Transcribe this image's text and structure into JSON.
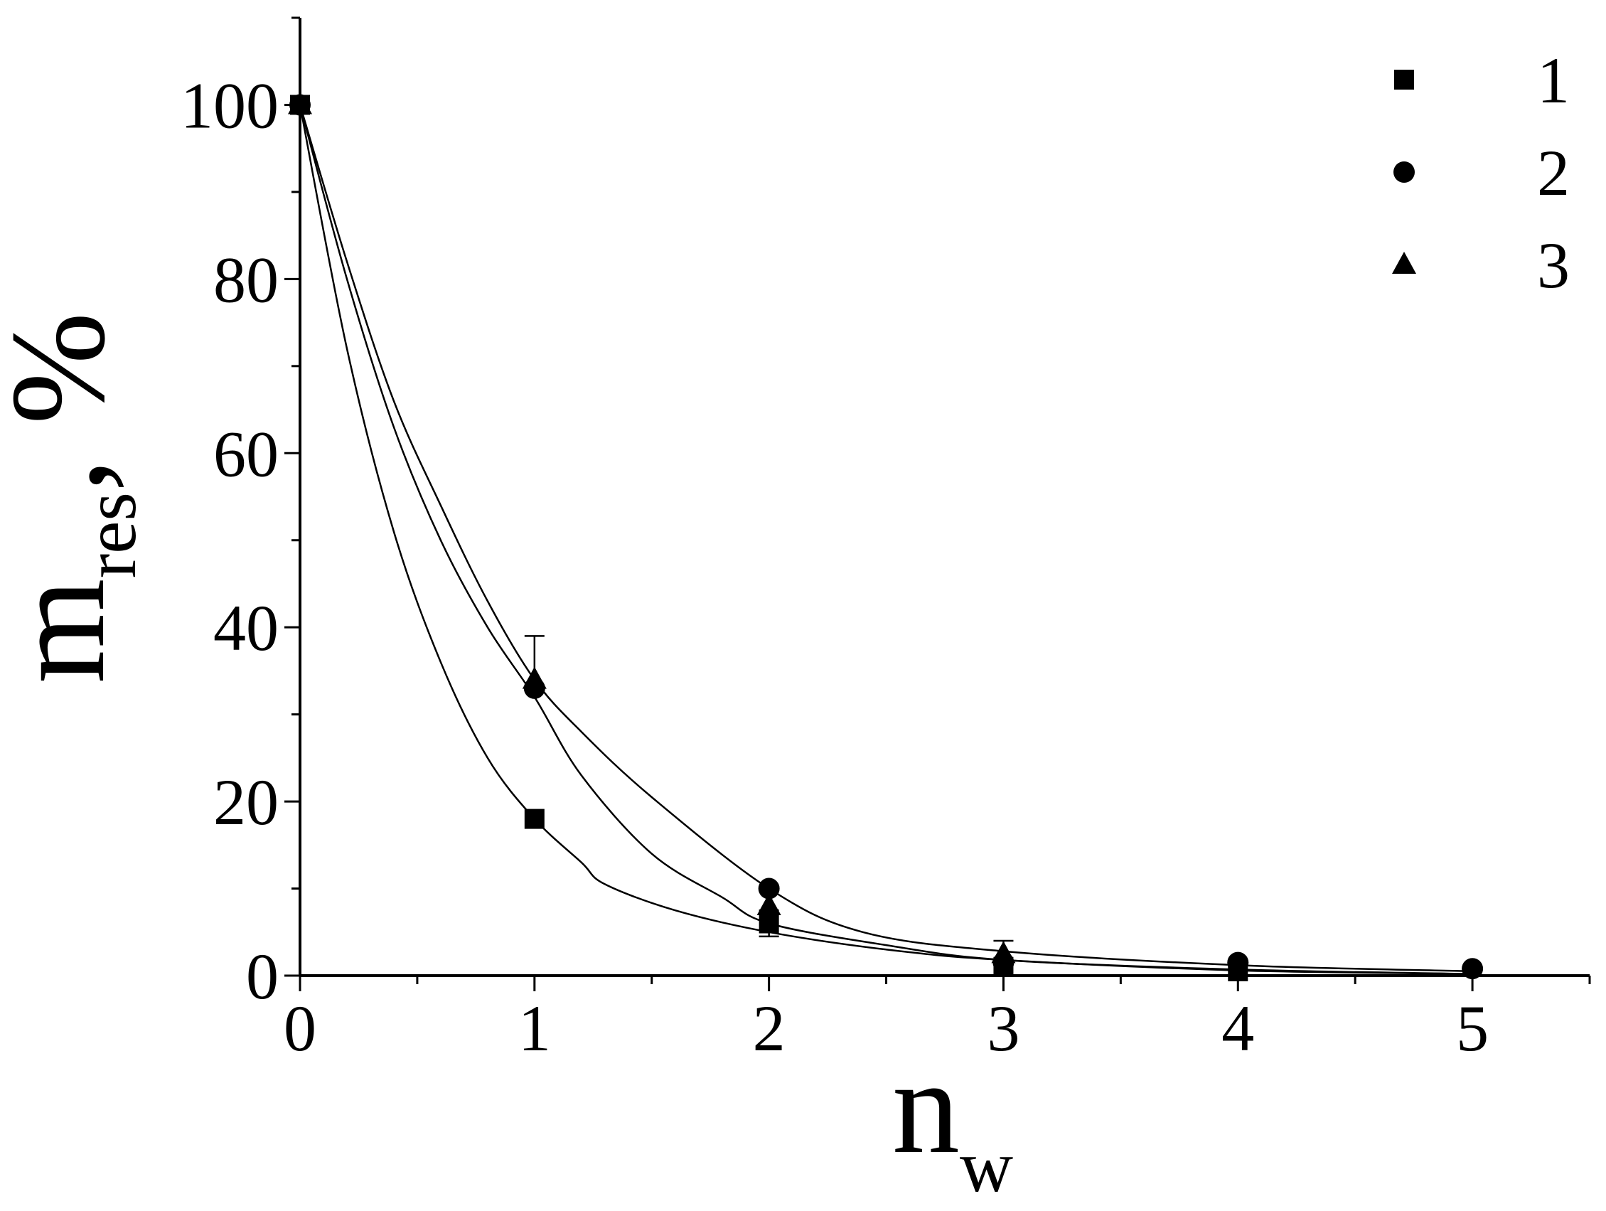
{
  "chart_data": {
    "type": "scatter",
    "xlabel": {
      "main": "n",
      "sub": "w"
    },
    "ylabel": {
      "main": "m",
      "sub": "res",
      "suffix": ", %"
    },
    "xlim": [
      0,
      5.5
    ],
    "ylim": [
      0,
      110
    ],
    "x_ticks": [
      "0",
      "1",
      "2",
      "3",
      "4",
      "5"
    ],
    "y_ticks": [
      "0",
      "20",
      "40",
      "60",
      "80",
      "100"
    ],
    "legend_position": "top-right",
    "series": [
      {
        "name": "1",
        "marker": "square",
        "x": [
          0,
          1,
          2,
          3,
          4
        ],
        "y": [
          100,
          18,
          6,
          1,
          0.5
        ],
        "error": [
          0,
          0,
          1.5,
          0,
          0
        ]
      },
      {
        "name": "2",
        "marker": "circle",
        "x": [
          0,
          1,
          2,
          3,
          4,
          5
        ],
        "y": [
          100,
          33,
          10,
          1.5,
          1.5,
          0.8
        ],
        "error": [
          0,
          0,
          0,
          0,
          0,
          0
        ]
      },
      {
        "name": "3",
        "marker": "triangle",
        "x": [
          0,
          1,
          2,
          3
        ],
        "y": [
          100,
          34,
          8,
          2.5
        ],
        "error": [
          0,
          5,
          0,
          1.5
        ],
        "error_lower": [
          0,
          0,
          0,
          0
        ]
      }
    ],
    "fit_curves": [
      {
        "series": "1",
        "x": [
          0,
          0.2,
          0.4,
          0.6,
          0.8,
          1.0,
          1.2,
          1.3,
          1.6,
          2.0,
          2.5,
          3.0,
          4.0,
          5.0
        ],
        "y": [
          100,
          72,
          51,
          36,
          25,
          18,
          13,
          10.5,
          7.5,
          5,
          3,
          1.8,
          0.6,
          0.2
        ]
      },
      {
        "series": "2",
        "x": [
          0,
          0.2,
          0.4,
          0.6,
          0.8,
          1.0,
          1.2,
          1.5,
          2.0,
          2.4,
          3.0,
          4.0,
          5.0
        ],
        "y": [
          100,
          82,
          66,
          54,
          43,
          34,
          28,
          20.5,
          10,
          5,
          2.8,
          1.2,
          0.5
        ]
      },
      {
        "series": "3",
        "x": [
          0,
          0.2,
          0.4,
          0.6,
          0.8,
          1.0,
          1.2,
          1.5,
          1.8,
          2.0,
          2.5,
          3.0,
          4.0,
          5.0
        ],
        "y": [
          100,
          80,
          63,
          50,
          40,
          32,
          23,
          14,
          9,
          6,
          3.5,
          1.8,
          0.7,
          0.2
        ]
      }
    ]
  }
}
